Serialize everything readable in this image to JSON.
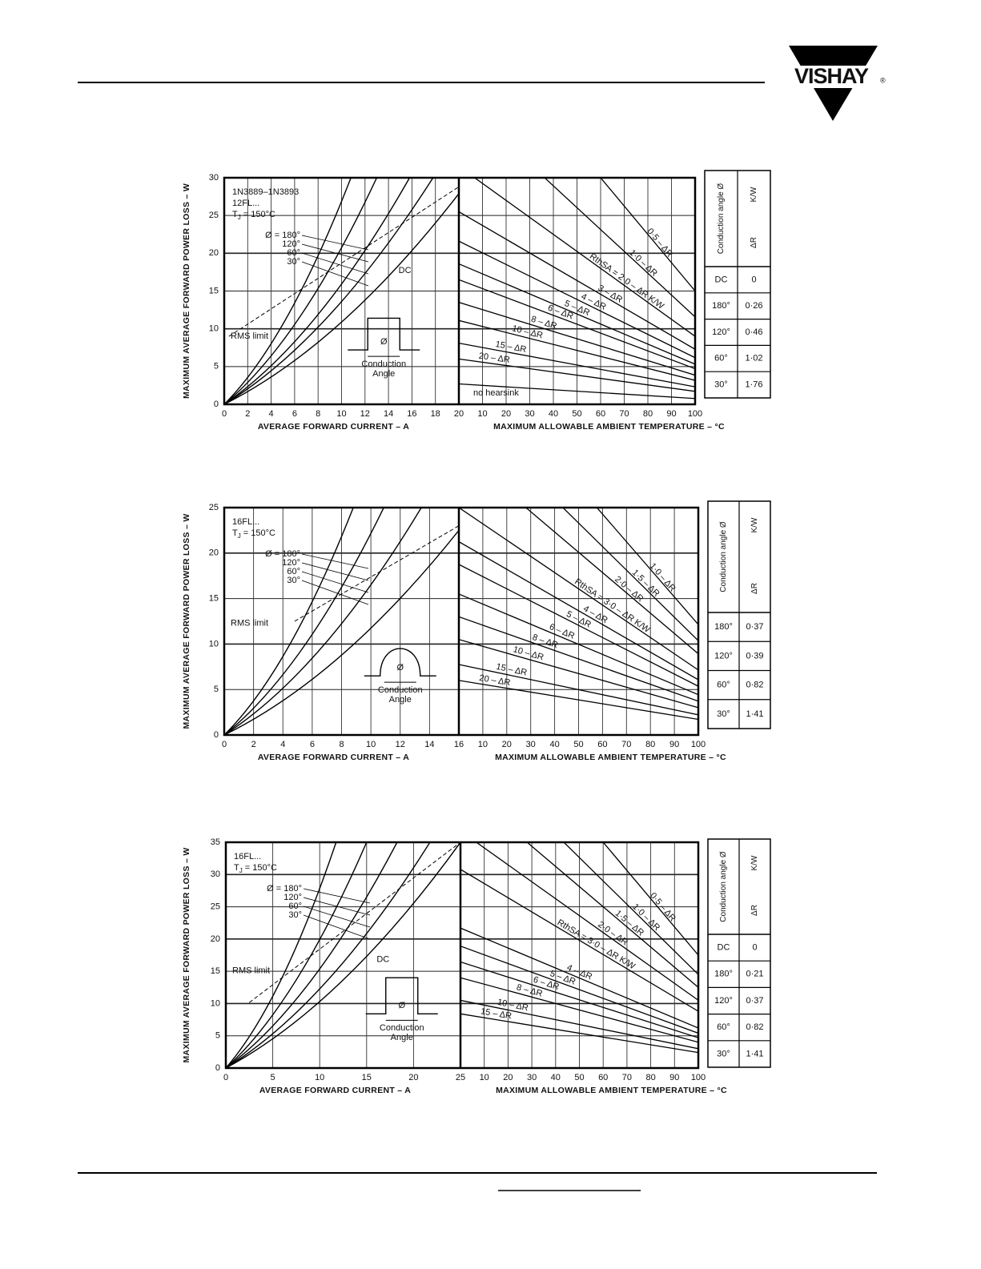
{
  "header": {
    "logo": "VISHAY",
    "logo_mark": "®"
  },
  "charts": [
    {
      "notes": [
        "1N3889–1N3893",
        "12FL..."
      ],
      "tj": [
        "T",
        "J",
        " = 150°C"
      ],
      "angles": [
        "Ø = 180°",
        "120°",
        "60°",
        "30°"
      ],
      "dc": "DC",
      "rms": "RMS limit",
      "waveform": {
        "symbol": "Ø",
        "label": [
          "Conduction",
          "Angle"
        ]
      },
      "heatsinks": [
        "0·5 – ΔR",
        "1·0 – ΔR",
        "RthSA = 2·0 – ΔR K/W",
        "3 – ΔR",
        "4 – ΔR",
        "5 – ΔR",
        "6 – ΔR",
        "8 – ΔR",
        "10 – ΔR",
        "15 – ΔR",
        "20 – ΔR"
      ],
      "no_heatsink": "no hearsink",
      "y_label": "MAXIMUM AVERAGE FORWARD POWER LOSS – W",
      "x_label": "AVERAGE FORWARD CURRENT – A",
      "t_label": "MAXIMUM ALLOWABLE AMBIENT TEMPERATURE – °C",
      "yticks": [
        0,
        5,
        10,
        15,
        20,
        25,
        30
      ],
      "xticks": [
        0,
        2,
        4,
        6,
        8,
        10,
        12,
        14,
        16,
        18,
        20
      ],
      "tticks": [
        10,
        20,
        30,
        40,
        50,
        60,
        70,
        80,
        90,
        100
      ],
      "table": {
        "header": [
          "Conduction angle Ø",
          "ΔR",
          "K/W"
        ],
        "rows": [
          [
            "DC",
            "0"
          ],
          [
            "180°",
            "0·26"
          ],
          [
            "120°",
            "0·46"
          ],
          [
            "60°",
            "1·02"
          ],
          [
            "30°",
            "1·76"
          ]
        ]
      }
    },
    {
      "notes": [
        "16FL..."
      ],
      "tj": [
        "T",
        "J",
        " = 150°C"
      ],
      "angles": [
        "Ø = 180°",
        "120°",
        "60°",
        "30°"
      ],
      "rms": "RMS limit",
      "waveform": {
        "symbol": "Ø",
        "label": [
          "Conduction",
          "Angle"
        ]
      },
      "heatsinks": [
        "1·0 – ΔR",
        "1·5 – ΔR",
        "2·0 – ΔR",
        "RthSA = 3·0 – ΔR K/W",
        "4 – ΔR",
        "5 – ΔR",
        "6 – ΔR",
        "8 – ΔR",
        "10 – ΔR",
        "15 – ΔR",
        "20 – ΔR"
      ],
      "y_label": "MAXIMUM AVERAGE FORWARD POWER LOSS – W",
      "x_label": "AVERAGE FORWARD CURRENT – A",
      "t_label": "MAXIMUM ALLOWABLE AMBIENT TEMPERATURE – °C",
      "yticks": [
        0,
        5,
        10,
        15,
        20,
        25
      ],
      "xticks": [
        0,
        2,
        4,
        6,
        8,
        10,
        12,
        14,
        16
      ],
      "tticks": [
        10,
        20,
        30,
        40,
        50,
        60,
        70,
        80,
        90,
        100
      ],
      "table": {
        "header": [
          "Conduction angle Ø",
          "ΔR",
          "K/W"
        ],
        "rows": [
          [
            "180°",
            "0·37"
          ],
          [
            "120°",
            "0·39"
          ],
          [
            "60°",
            "0·82"
          ],
          [
            "30°",
            "1·41"
          ]
        ]
      }
    },
    {
      "notes": [
        "16FL..."
      ],
      "tj": [
        "T",
        "J",
        " = 150°C"
      ],
      "angles": [
        "Ø = 180°",
        "120°",
        "60°",
        "30°"
      ],
      "dc": "DC",
      "rms": "RMS limit",
      "waveform": {
        "symbol": "Ø",
        "label": [
          "Conduction",
          "Angle"
        ]
      },
      "heatsinks": [
        "0·5 – ΔR",
        "1·0 – ΔR",
        "1·5 – ΔR",
        "2·0 – ΔR",
        "RthSA = 3·0 – ΔR K/W",
        "4 – ΔR",
        "5 – ΔR",
        "6 – ΔR",
        "8 – ΔR",
        "10 – ΔR",
        "15 – ΔR"
      ],
      "y_label": "MAXIMUM AVERAGE FORWARD POWER LOSS – W",
      "x_label": "AVERAGE FORWARD CURRENT – A",
      "t_label": "MAXIMUM ALLOWABLE AMBIENT TEMPERATURE – °C",
      "yticks": [
        0,
        5,
        10,
        15,
        20,
        25,
        30,
        35
      ],
      "xticks": [
        0,
        5,
        10,
        15,
        20,
        25
      ],
      "tticks": [
        10,
        20,
        30,
        40,
        50,
        60,
        70,
        80,
        90,
        100
      ],
      "table": {
        "header": [
          "Conduction angle Ø",
          "ΔR",
          "K/W"
        ],
        "rows": [
          [
            "DC",
            "0"
          ],
          [
            "180°",
            "0·21"
          ],
          [
            "120°",
            "0·37"
          ],
          [
            "60°",
            "0·82"
          ],
          [
            "30°",
            "1·41"
          ]
        ]
      }
    }
  ]
}
